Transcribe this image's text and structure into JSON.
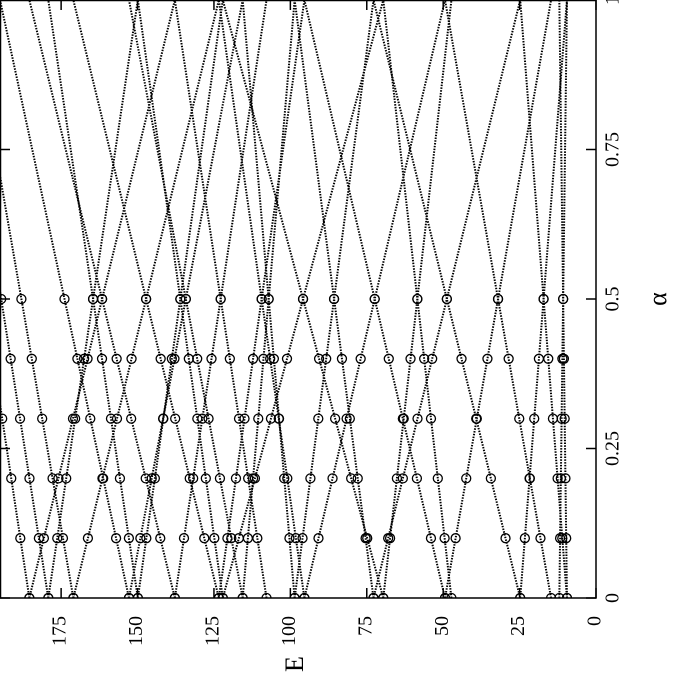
{
  "chart_data": {
    "type": "line",
    "x_label": "α",
    "y_label": "E",
    "x": [
      0,
      0.1,
      0.2,
      0.3,
      0.4,
      0.5,
      1
    ],
    "markers": [
      true,
      true,
      true,
      true,
      true,
      true,
      false
    ],
    "color": "#000000",
    "xlim": [
      0,
      1
    ],
    "xticks": [
      0,
      0.25,
      0.5,
      0.75,
      1
    ],
    "ylim": [
      0,
      195
    ],
    "yticks": [
      0,
      25,
      50,
      75,
      100,
      125,
      150,
      175
    ],
    "y_reversed": true,
    "series": [
      {
        "values": [
          9.5,
          9.75,
          10,
          10.25,
          10.5,
          10.75,
          12
        ]
      },
      {
        "values": [
          12,
          11.75,
          11.5,
          11.25,
          11,
          10.75,
          9.5
        ]
      },
      {
        "values": [
          9.5,
          11.03,
          12.56,
          14.09,
          15.62,
          17.15,
          24.8
        ]
      },
      {
        "values": [
          24.8,
          23.27,
          21.74,
          20.21,
          18.68,
          17.15,
          9.5
        ]
      },
      {
        "values": [
          14.7,
          18.17,
          21.64,
          25.11,
          28.58,
          32.05,
          49.4
        ]
      },
      {
        "values": [
          49.4,
          45.93,
          42.46,
          38.99,
          35.52,
          32.05,
          14.7
        ]
      },
      {
        "values": [
          24.8,
          29.6,
          34.4,
          39.2,
          44,
          48.8,
          72.8
        ]
      },
      {
        "values": [
          72.8,
          68,
          63.2,
          58.4,
          53.6,
          48.8,
          24.8
        ]
      },
      {
        "values": [
          47.3,
          49.53,
          51.76,
          53.99,
          56.22,
          58.45,
          69.6
        ]
      },
      {
        "values": [
          69.6,
          67.37,
          65.14,
          62.91,
          60.68,
          58.45,
          47.3
        ]
      },
      {
        "values": [
          49.4,
          54,
          58.6,
          63.2,
          67.8,
          72.4,
          95.4
        ]
      },
      {
        "values": [
          95.4,
          90.8,
          86.2,
          81.6,
          77,
          72.4,
          49.4
        ]
      },
      {
        "values": [
          72.8,
          75.38,
          77.96,
          80.54,
          83.12,
          85.7,
          98.6
        ]
      },
      {
        "values": [
          98.6,
          96.02,
          93.44,
          90.86,
          88.28,
          85.7,
          72.8
        ]
      },
      {
        "values": [
          69.6,
          74.85,
          80.1,
          85.35,
          90.6,
          95.85,
          122.1
        ]
      },
      {
        "values": [
          122.1,
          116.85,
          111.6,
          106.35,
          101.1,
          95.85,
          69.6
        ]
      },
      {
        "values": [
          95.4,
          98.2,
          101,
          103.8,
          106.6,
          109.4,
          123.4
        ]
      },
      {
        "values": [
          123.4,
          120.6,
          117.8,
          115,
          112.2,
          109.4,
          95.4
        ]
      },
      {
        "values": [
          98.6,
          100.3,
          102,
          103.7,
          105.4,
          107.1,
          115.6
        ]
      },
      {
        "values": [
          115.6,
          113.9,
          112.2,
          110.5,
          108.8,
          107.1,
          98.6
        ]
      },
      {
        "values": [
          107.8,
          110.8,
          113.8,
          116.8,
          119.8,
          122.8,
          137.8
        ]
      },
      {
        "values": [
          137.8,
          134.8,
          131.8,
          128.8,
          125.8,
          122.8,
          107.8
        ]
      },
      {
        "values": [
          115.6,
          119.32,
          123.04,
          126.76,
          130.48,
          134.2,
          152.8
        ]
      },
      {
        "values": [
          152.8,
          149.08,
          145.36,
          141.64,
          137.92,
          134.2,
          115.6
        ]
      },
      {
        "values": [
          122.1,
          124.88,
          127.66,
          130.44,
          133.22,
          136,
          149.9
        ]
      },
      {
        "values": [
          149.9,
          147.12,
          144.34,
          141.56,
          138.78,
          136,
          122.1
        ]
      },
      {
        "values": [
          123.4,
          128.16,
          132.92,
          137.68,
          142.44,
          147.2,
          171
        ]
      },
      {
        "values": [
          171,
          166.24,
          161.48,
          156.72,
          151.96,
          147.2,
          123.4
        ]
      },
      {
        "values": [
          137.8,
          142.56,
          147.32,
          152.08,
          156.84,
          161.6,
          185.4
        ]
      },
      {
        "values": [
          185.4,
          180.64,
          175.88,
          171.12,
          166.36,
          161.6,
          137.8
        ]
      },
      {
        "values": [
          149.9,
          152.83,
          155.76,
          158.69,
          161.62,
          164.55,
          179.2
        ]
      },
      {
        "values": [
          179.2,
          176.27,
          173.34,
          170.41,
          167.48,
          164.55,
          149.9
        ]
      },
      {
        "values": [
          152.8,
          157.02,
          161.24,
          165.46,
          169.68,
          173.9,
          195
        ]
      },
      {
        "values": [
          171,
          174.4,
          177.8,
          181.2,
          184.6,
          188,
          205
        ]
      },
      {
        "values": [
          179.2,
          182.28,
          185.36,
          188.44,
          191.52,
          194.6,
          210
        ]
      },
      {
        "values": [
          185.4,
          188.36,
          191.32,
          194.28,
          197.24,
          200.2,
          215
        ]
      }
    ]
  }
}
